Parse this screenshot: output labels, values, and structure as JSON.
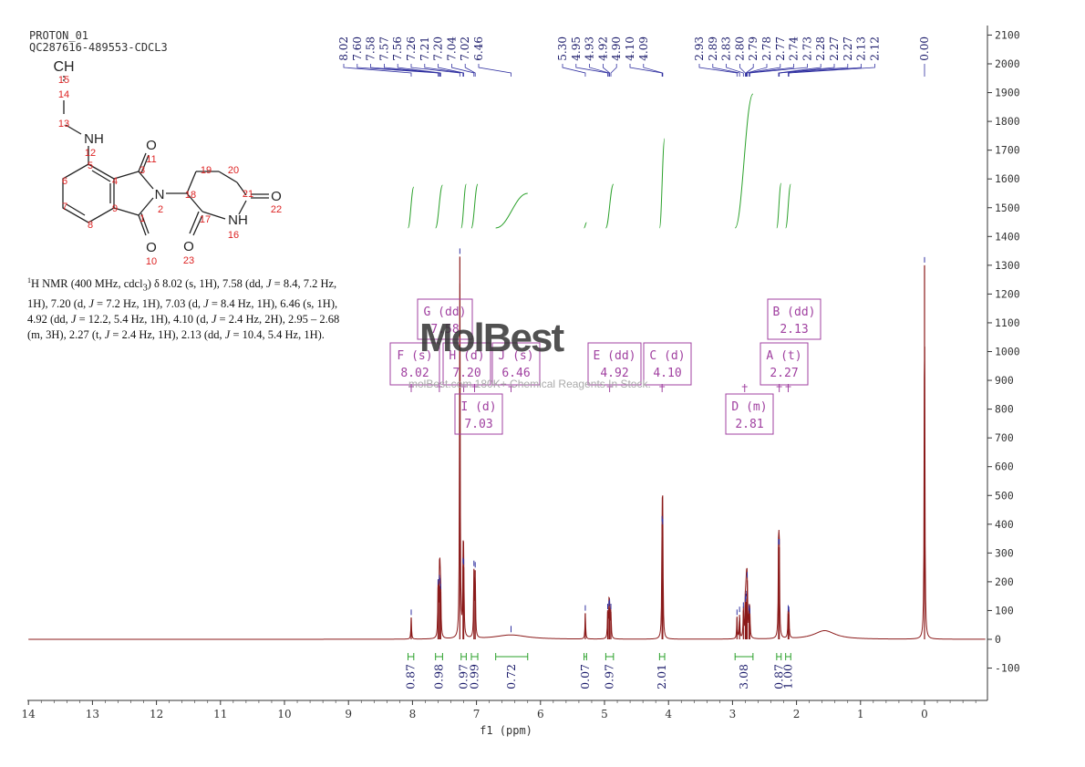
{
  "header": {
    "line1": "PROTON_01",
    "line2": "QC287616-489553-CDCL3"
  },
  "structure": {
    "atoms": [
      {
        "id": "CH",
        "text": "CH"
      },
      {
        "id": "15",
        "text": "15"
      },
      {
        "id": "14",
        "text": "14"
      },
      {
        "id": "13",
        "text": "13"
      },
      {
        "id": "NH12",
        "text": "NH"
      },
      {
        "id": "12",
        "text": "12"
      },
      {
        "id": "5",
        "text": "5"
      },
      {
        "id": "6",
        "text": "6"
      },
      {
        "id": "7",
        "text": "7"
      },
      {
        "id": "8",
        "text": "8"
      },
      {
        "id": "9",
        "text": "9"
      },
      {
        "id": "4",
        "text": "4"
      },
      {
        "id": "3",
        "text": "3"
      },
      {
        "id": "1",
        "text": "1"
      },
      {
        "id": "O11",
        "text": "O"
      },
      {
        "id": "11",
        "text": "11"
      },
      {
        "id": "N2",
        "text": "N"
      },
      {
        "id": "2",
        "text": "2"
      },
      {
        "id": "O10",
        "text": "O"
      },
      {
        "id": "10",
        "text": "10"
      },
      {
        "id": "18",
        "text": "18"
      },
      {
        "id": "19",
        "text": "19"
      },
      {
        "id": "20",
        "text": "20"
      },
      {
        "id": "21",
        "text": "21"
      },
      {
        "id": "O22",
        "text": "O"
      },
      {
        "id": "22",
        "text": "22"
      },
      {
        "id": "17",
        "text": "17"
      },
      {
        "id": "NH16",
        "text": "NH"
      },
      {
        "id": "16",
        "text": "16"
      },
      {
        "id": "O23",
        "text": "O"
      },
      {
        "id": "23",
        "text": "23"
      }
    ]
  },
  "nmr_text": {
    "p1": "H NMR (400 MHz, cdcl",
    "p2": ") δ 8.02 (s, 1H), 7.58 (dd, ",
    "p3": " = 8.4, 7.2 Hz, 1H), 7.20 (d, ",
    "p4": " = 7.2 Hz, 1H), 7.03 (d, ",
    "p5": " = 8.4 Hz, 1H), 6.46 (s, 1H), 4.92 (dd, ",
    "p6": " = 12.2, 5.4 Hz, 1H), 4.10 (d, ",
    "p7": " = 2.4 Hz, 2H), 2.95 – 2.68 (m, 3H), 2.27 (t, ",
    "p8": " = 2.4 Hz, 1H), 2.13 (dd, ",
    "p9": " = 10.4, 5.4 Hz, 1H).",
    "sup1": "1",
    "sub3": "3",
    "J": "J"
  },
  "watermark": {
    "logo": "MolBest",
    "text": "molBest.com 180K+ Chemical Reagents In Stock."
  },
  "chart_data": {
    "type": "line",
    "xlabel": "f1 (ppm)",
    "xlim": [
      14,
      -0.9
    ],
    "ylim": [
      -200,
      2100
    ],
    "x_ticks": [
      "14",
      "13",
      "12",
      "11",
      "10",
      "9",
      "8",
      "7",
      "6",
      "5",
      "4",
      "3",
      "2",
      "1",
      "0"
    ],
    "y_ticks": [
      "2100",
      "2000",
      "1900",
      "1800",
      "1700",
      "1600",
      "1500",
      "1400",
      "1300",
      "1200",
      "1100",
      "1000",
      "900",
      "800",
      "700",
      "600",
      "500",
      "400",
      "300",
      "200",
      "100",
      "0",
      "-100"
    ],
    "peak_labels": [
      "8.02",
      "7.60",
      "7.58",
      "7.57",
      "7.56",
      "7.26",
      "7.21",
      "7.20",
      "7.04",
      "7.02",
      "6.46",
      "5.30",
      "4.95",
      "4.93",
      "4.92",
      "4.90",
      "4.10",
      "4.09",
      "2.93",
      "2.89",
      "2.83",
      "2.80",
      "2.79",
      "2.78",
      "2.77",
      "2.74",
      "2.73",
      "2.28",
      "2.27",
      "2.27",
      "2.13",
      "2.12",
      "0.00"
    ],
    "peaks": [
      {
        "ppm": 8.02,
        "h": 75
      },
      {
        "ppm": 7.6,
        "h": 180
      },
      {
        "ppm": 7.58,
        "h": 195
      },
      {
        "ppm": 7.57,
        "h": 185
      },
      {
        "ppm": 7.56,
        "h": 165
      },
      {
        "ppm": 7.26,
        "h": 1330
      },
      {
        "ppm": 7.21,
        "h": 255
      },
      {
        "ppm": 7.2,
        "h": 250
      },
      {
        "ppm": 7.04,
        "h": 245
      },
      {
        "ppm": 7.02,
        "h": 240
      },
      {
        "ppm": 5.3,
        "h": 90
      },
      {
        "ppm": 4.95,
        "h": 95
      },
      {
        "ppm": 4.93,
        "h": 105
      },
      {
        "ppm": 4.92,
        "h": 110
      },
      {
        "ppm": 4.9,
        "h": 95
      },
      {
        "ppm": 4.1,
        "h": 400
      },
      {
        "ppm": 4.09,
        "h": 390
      },
      {
        "ppm": 2.93,
        "h": 75
      },
      {
        "ppm": 2.89,
        "h": 85
      },
      {
        "ppm": 2.83,
        "h": 100
      },
      {
        "ppm": 2.8,
        "h": 120
      },
      {
        "ppm": 2.79,
        "h": 130
      },
      {
        "ppm": 2.78,
        "h": 140
      },
      {
        "ppm": 2.77,
        "h": 205
      },
      {
        "ppm": 2.74,
        "h": 90
      },
      {
        "ppm": 2.73,
        "h": 80
      },
      {
        "ppm": 2.28,
        "h": 320
      },
      {
        "ppm": 2.27,
        "h": 320
      },
      {
        "ppm": 2.13,
        "h": 90
      },
      {
        "ppm": 2.12,
        "h": 85
      },
      {
        "ppm": 0.0,
        "h": 1300
      }
    ],
    "broad_peaks": [
      {
        "ppm": 6.46,
        "h": 15,
        "w": 0.3
      },
      {
        "ppm": 1.56,
        "h": 30,
        "w": 0.2
      }
    ],
    "integrations": [
      {
        "value": "0.87",
        "from": 8.07,
        "to": 7.98
      },
      {
        "value": "0.98",
        "from": 7.64,
        "to": 7.53
      },
      {
        "value": "0.97",
        "from": 7.24,
        "to": 7.16
      },
      {
        "value": "0.99",
        "from": 7.08,
        "to": 6.98
      },
      {
        "value": "0.72",
        "from": 6.7,
        "to": 6.2
      },
      {
        "value": "0.07",
        "from": 5.32,
        "to": 5.28
      },
      {
        "value": "0.97",
        "from": 4.98,
        "to": 4.86
      },
      {
        "value": "2.01",
        "from": 4.14,
        "to": 4.06
      },
      {
        "value": "3.08",
        "from": 2.96,
        "to": 2.68
      },
      {
        "value": "0.87",
        "from": 2.31,
        "to": 2.24
      },
      {
        "value": "1.00",
        "from": 2.17,
        "to": 2.09
      }
    ],
    "multiplet_boxes": [
      {
        "name": "G (dd)",
        "value": "7.58"
      },
      {
        "name": "F (s)",
        "value": "8.02"
      },
      {
        "name": "H (d)",
        "value": "7.20"
      },
      {
        "name": "J (s)",
        "value": "6.46"
      },
      {
        "name": "E (dd)",
        "value": "4.92"
      },
      {
        "name": "C (d)",
        "value": "4.10"
      },
      {
        "name": "I (d)",
        "value": "7.03"
      },
      {
        "name": "B (dd)",
        "value": "2.13"
      },
      {
        "name": "A (t)",
        "value": "2.27"
      },
      {
        "name": "D (m)",
        "value": "2.81"
      }
    ],
    "colors": {
      "spectrum": "#8b1a1a",
      "peak_marks": "#3030a0",
      "integral": "#2aa02a",
      "box": "#a040a0",
      "axis": "#333333"
    }
  }
}
